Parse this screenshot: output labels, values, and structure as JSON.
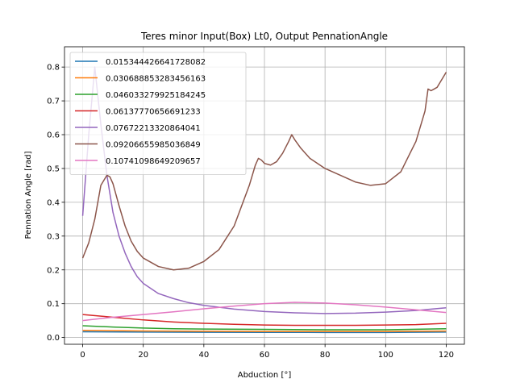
{
  "chart_data": {
    "type": "line",
    "title": "Teres minor Input(Box) Lt0, Output PennationAngle",
    "xlabel": "Abduction [°]",
    "ylabel": "Pennation Angle [rad]",
    "xlim": [
      -6,
      126
    ],
    "ylim": [
      -0.02,
      0.86
    ],
    "xticks": [
      0,
      20,
      40,
      60,
      80,
      100,
      120
    ],
    "yticks": [
      0.0,
      0.1,
      0.2,
      0.3,
      0.4,
      0.5,
      0.6,
      0.7,
      0.8
    ],
    "xtick_labels": [
      "0",
      "20",
      "40",
      "60",
      "80",
      "100",
      "120"
    ],
    "ytick_labels": [
      "0.0",
      "0.1",
      "0.2",
      "0.3",
      "0.4",
      "0.5",
      "0.6",
      "0.7",
      "0.8"
    ],
    "grid": true,
    "legend_position": "top-left",
    "series": [
      {
        "name": "0.015344426641728082",
        "color": "#1f77b4",
        "x": [
          0,
          20,
          40,
          60,
          80,
          100,
          120
        ],
        "y": [
          0.017,
          0.016,
          0.0155,
          0.0152,
          0.015,
          0.015,
          0.016
        ]
      },
      {
        "name": "0.030688853283456163",
        "color": "#ff7f0e",
        "x": [
          0,
          20,
          40,
          60,
          80,
          100,
          120
        ],
        "y": [
          0.021,
          0.0195,
          0.0185,
          0.018,
          0.018,
          0.018,
          0.019
        ]
      },
      {
        "name": "0.046033279925184245",
        "color": "#2ca02c",
        "x": [
          0,
          10,
          20,
          30,
          40,
          60,
          80,
          100,
          120
        ],
        "y": [
          0.035,
          0.031,
          0.028,
          0.026,
          0.025,
          0.024,
          0.023,
          0.023,
          0.026
        ]
      },
      {
        "name": "0.06137770656691233",
        "color": "#d62728",
        "x": [
          0,
          10,
          20,
          30,
          40,
          50,
          60,
          70,
          80,
          90,
          100,
          110,
          120
        ],
        "y": [
          0.068,
          0.06,
          0.052,
          0.046,
          0.042,
          0.039,
          0.037,
          0.036,
          0.036,
          0.036,
          0.037,
          0.038,
          0.042
        ]
      },
      {
        "name": "0.07672213320864041",
        "color": "#9467bd",
        "x": [
          0,
          2,
          4,
          6,
          8,
          10,
          12,
          14,
          16,
          18,
          20,
          25,
          30,
          35,
          40,
          50,
          60,
          70,
          80,
          90,
          100,
          110,
          120
        ],
        "y": [
          0.36,
          0.6,
          0.8,
          0.63,
          0.48,
          0.37,
          0.3,
          0.25,
          0.21,
          0.18,
          0.16,
          0.13,
          0.115,
          0.103,
          0.095,
          0.084,
          0.077,
          0.073,
          0.071,
          0.072,
          0.075,
          0.08,
          0.088
        ]
      },
      {
        "name": "0.09206655985036849",
        "color": "#8c564b",
        "x": [
          0,
          2,
          4,
          6,
          8,
          9,
          10,
          12,
          14,
          16,
          18,
          20,
          25,
          30,
          35,
          40,
          45,
          50,
          55,
          57,
          58,
          59,
          60,
          62,
          64,
          66,
          68,
          69,
          70,
          72,
          75,
          80,
          85,
          90,
          95,
          100,
          105,
          110,
          113,
          114,
          115,
          116,
          117,
          118,
          119,
          120
        ],
        "y": [
          0.235,
          0.28,
          0.35,
          0.45,
          0.48,
          0.475,
          0.455,
          0.39,
          0.33,
          0.285,
          0.255,
          0.235,
          0.21,
          0.2,
          0.205,
          0.225,
          0.26,
          0.33,
          0.45,
          0.51,
          0.53,
          0.525,
          0.515,
          0.51,
          0.52,
          0.545,
          0.58,
          0.6,
          0.585,
          0.56,
          0.53,
          0.5,
          0.48,
          0.46,
          0.45,
          0.455,
          0.49,
          0.58,
          0.67,
          0.735,
          0.73,
          0.735,
          0.74,
          0.755,
          0.77,
          0.785
        ]
      },
      {
        "name": "0.10741098649209657",
        "color": "#e377c2",
        "x": [
          0,
          10,
          20,
          30,
          40,
          50,
          60,
          70,
          80,
          90,
          100,
          110,
          120
        ],
        "y": [
          0.05,
          0.06,
          0.068,
          0.076,
          0.085,
          0.093,
          0.1,
          0.104,
          0.102,
          0.097,
          0.09,
          0.082,
          0.074
        ]
      }
    ]
  }
}
